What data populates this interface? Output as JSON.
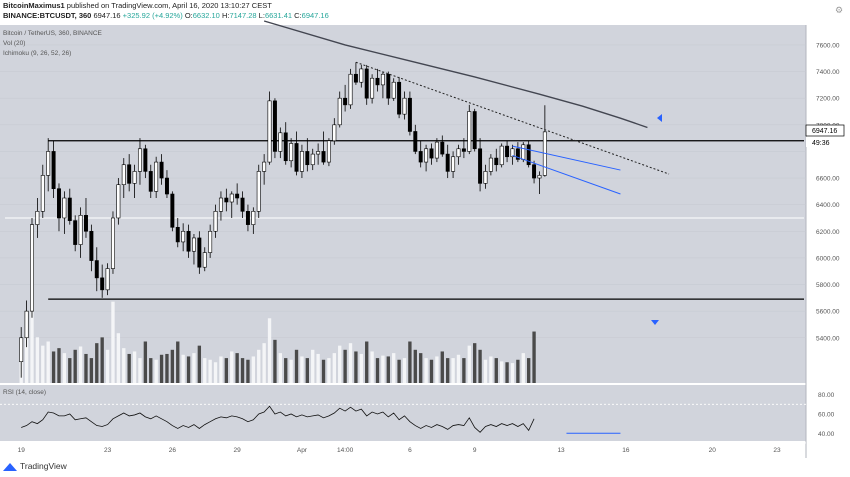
{
  "header": {
    "author": "BitcoinMaximus1",
    "published": "published on TradingView.com, April 16, 2020 13:10:27 CEST",
    "symbol": "BINANCE:BTCUSDT, 360",
    "last": "6947.16",
    "change": "+325.92 (+4.92%)",
    "o_label": "O:",
    "o": "6632.10",
    "h_label": "H:",
    "h": "7147.28",
    "l_label": "L:",
    "l": "6631.41",
    "c_label": "C:",
    "c": "6947.16"
  },
  "legend": {
    "title": "Bitcoin / TetherUS, 360, BINANCE",
    "vol": "Vol (20)",
    "ichimoku": "Ichimoku (9, 26, 52, 26)",
    "rsi": "RSI (14, close)"
  },
  "price_tag": {
    "value": "6947.16",
    "timer": "49:36"
  },
  "footer": {
    "brand": "TradingView"
  },
  "colors": {
    "background": "#d1d4dc",
    "bull": "#ffffff",
    "bear": "#000000",
    "wedge": "#2962ff",
    "ma": "#434651"
  },
  "chart_data": {
    "type": "candlestick",
    "price_axis": {
      "ticks": [
        5400,
        5600,
        5800,
        6000,
        6200,
        6400,
        6600,
        6800,
        7000,
        7200,
        7400,
        7600
      ],
      "labels": [
        "5400.00",
        "5600.00",
        "5800.00",
        "6000.00",
        "6200.00",
        "6400.00",
        "6600.00",
        "6800.00",
        "7000.00",
        "7200.00",
        "7400.00",
        "7600.00"
      ],
      "ylim": [
        5060,
        7750
      ]
    },
    "time_axis": {
      "labels": [
        "19",
        "23",
        "26",
        "29",
        "Apr",
        "14:00",
        "6",
        "9",
        "13",
        "16",
        "20",
        "23"
      ],
      "positions": [
        0,
        16,
        28,
        40,
        52,
        60,
        72,
        84,
        100,
        112,
        128,
        140
      ],
      "xlim": [
        -3,
        145
      ]
    },
    "candles": [
      [
        5220,
        5480,
        5100,
        5400
      ],
      [
        5400,
        5680,
        5330,
        5600
      ],
      [
        5600,
        6300,
        5550,
        6250
      ],
      [
        6250,
        6450,
        6150,
        6350
      ],
      [
        6350,
        6700,
        6300,
        6620
      ],
      [
        6620,
        6900,
        6500,
        6800
      ],
      [
        6800,
        6880,
        6450,
        6520
      ],
      [
        6520,
        6560,
        6200,
        6300
      ],
      [
        6300,
        6500,
        6180,
        6450
      ],
      [
        6450,
        6520,
        6250,
        6280
      ],
      [
        6280,
        6320,
        6050,
        6100
      ],
      [
        6100,
        6380,
        6000,
        6320
      ],
      [
        6320,
        6450,
        6150,
        6200
      ],
      [
        6200,
        6250,
        5900,
        5980
      ],
      [
        5980,
        6080,
        5750,
        5850
      ],
      [
        5850,
        5950,
        5700,
        5760
      ],
      [
        5760,
        5960,
        5720,
        5920
      ],
      [
        5920,
        6350,
        5880,
        6300
      ],
      [
        6300,
        6600,
        6250,
        6550
      ],
      [
        6550,
        6750,
        6450,
        6700
      ],
      [
        6700,
        6780,
        6500,
        6560
      ],
      [
        6560,
        6700,
        6450,
        6650
      ],
      [
        6650,
        6900,
        6550,
        6820
      ],
      [
        6820,
        6850,
        6600,
        6650
      ],
      [
        6650,
        6700,
        6450,
        6500
      ],
      [
        6500,
        6760,
        6450,
        6720
      ],
      [
        6720,
        6780,
        6550,
        6600
      ],
      [
        6600,
        6660,
        6450,
        6480
      ],
      [
        6480,
        6500,
        6200,
        6230
      ],
      [
        6230,
        6300,
        6080,
        6120
      ],
      [
        6120,
        6260,
        6050,
        6200
      ],
      [
        6200,
        6250,
        6000,
        6050
      ],
      [
        6050,
        6180,
        5950,
        6150
      ],
      [
        6150,
        6200,
        5880,
        5930
      ],
      [
        5930,
        6080,
        5900,
        6040
      ],
      [
        6040,
        6250,
        6000,
        6200
      ],
      [
        6200,
        6400,
        6150,
        6350
      ],
      [
        6350,
        6500,
        6280,
        6450
      ],
      [
        6450,
        6520,
        6350,
        6420
      ],
      [
        6420,
        6500,
        6300,
        6480
      ],
      [
        6480,
        6560,
        6400,
        6450
      ],
      [
        6450,
        6500,
        6300,
        6350
      ],
      [
        6350,
        6400,
        6200,
        6250
      ],
      [
        6250,
        6380,
        6180,
        6350
      ],
      [
        6350,
        6700,
        6300,
        6650
      ],
      [
        6650,
        6780,
        6550,
        6720
      ],
      [
        6720,
        7250,
        6700,
        7180
      ],
      [
        7180,
        7200,
        6750,
        6800
      ],
      [
        6800,
        6980,
        6750,
        6940
      ],
      [
        6940,
        7020,
        6700,
        6730
      ],
      [
        6730,
        6900,
        6680,
        6860
      ],
      [
        6860,
        6950,
        6620,
        6650
      ],
      [
        6650,
        6850,
        6600,
        6800
      ],
      [
        6800,
        6900,
        6650,
        6700
      ],
      [
        6700,
        6820,
        6660,
        6780
      ],
      [
        6780,
        6860,
        6700,
        6800
      ],
      [
        6800,
        6950,
        6700,
        6720
      ],
      [
        6720,
        6900,
        6690,
        6880
      ],
      [
        6880,
        7050,
        6850,
        7000
      ],
      [
        7000,
        7250,
        6980,
        7200
      ],
      [
        7200,
        7300,
        7100,
        7150
      ],
      [
        7150,
        7420,
        7120,
        7380
      ],
      [
        7380,
        7470,
        7300,
        7320
      ],
      [
        7320,
        7450,
        7280,
        7420
      ],
      [
        7420,
        7450,
        7150,
        7200
      ],
      [
        7200,
        7380,
        7160,
        7350
      ],
      [
        7350,
        7420,
        7250,
        7300
      ],
      [
        7300,
        7400,
        7200,
        7380
      ],
      [
        7380,
        7400,
        7150,
        7200
      ],
      [
        7200,
        7350,
        7180,
        7320
      ],
      [
        7320,
        7360,
        7050,
        7080
      ],
      [
        7080,
        7250,
        7040,
        7200
      ],
      [
        7200,
        7250,
        6920,
        6950
      ],
      [
        6950,
        7000,
        6780,
        6800
      ],
      [
        6800,
        6880,
        6680,
        6720
      ],
      [
        6720,
        6850,
        6650,
        6820
      ],
      [
        6820,
        6860,
        6700,
        6750
      ],
      [
        6750,
        6900,
        6720,
        6870
      ],
      [
        6870,
        6920,
        6760,
        6780
      ],
      [
        6780,
        6850,
        6600,
        6650
      ],
      [
        6650,
        6800,
        6600,
        6760
      ],
      [
        6760,
        6850,
        6700,
        6820
      ],
      [
        6820,
        6900,
        6750,
        6800
      ],
      [
        6800,
        7150,
        6780,
        7100
      ],
      [
        7100,
        7120,
        6800,
        6820
      ],
      [
        6820,
        6900,
        6500,
        6560
      ],
      [
        6560,
        6700,
        6520,
        6650
      ],
      [
        6650,
        6780,
        6620,
        6750
      ],
      [
        6750,
        6820,
        6650,
        6700
      ],
      [
        6700,
        6860,
        6680,
        6840
      ],
      [
        6840,
        6880,
        6720,
        6760
      ],
      [
        6760,
        6850,
        6700,
        6820
      ],
      [
        6820,
        6870,
        6720,
        6740
      ],
      [
        6740,
        6870,
        6720,
        6850
      ],
      [
        6850,
        6880,
        6680,
        6700
      ],
      [
        6700,
        6730,
        6560,
        6600
      ],
      [
        6600,
        6650,
        6480,
        6620
      ],
      [
        6620,
        7147,
        6610,
        6947
      ]
    ],
    "volume": [
      0.52,
      0.6,
      0.88,
      0.55,
      0.45,
      0.5,
      0.38,
      0.42,
      0.36,
      0.3,
      0.4,
      0.44,
      0.35,
      0.3,
      0.48,
      0.55,
      0.4,
      0.98,
      0.6,
      0.42,
      0.35,
      0.38,
      0.3,
      0.5,
      0.3,
      0.28,
      0.34,
      0.35,
      0.4,
      0.5,
      0.34,
      0.32,
      0.36,
      0.45,
      0.3,
      0.28,
      0.25,
      0.32,
      0.3,
      0.38,
      0.36,
      0.3,
      0.28,
      0.32,
      0.4,
      0.48,
      0.78,
      0.52,
      0.36,
      0.3,
      0.28,
      0.4,
      0.32,
      0.3,
      0.4,
      0.35,
      0.28,
      0.3,
      0.36,
      0.45,
      0.4,
      0.48,
      0.38,
      0.35,
      0.5,
      0.38,
      0.3,
      0.33,
      0.32,
      0.36,
      0.28,
      0.3,
      0.5,
      0.4,
      0.36,
      0.3,
      0.28,
      0.32,
      0.38,
      0.3,
      0.3,
      0.34,
      0.3,
      0.45,
      0.48,
      0.4,
      0.28,
      0.32,
      0.3,
      0.26,
      0.25,
      0.24,
      0.28,
      0.36,
      0.3,
      0.62
    ],
    "horizontal_levels": [
      6880,
      6300,
      5690
    ],
    "rsi": {
      "ticks": [
        40,
        60,
        80
      ],
      "labels": [
        "40.00",
        "60.00",
        "80.00"
      ],
      "ylim": [
        32,
        90
      ],
      "band": [
        30,
        70
      ],
      "values": [
        46,
        48,
        52,
        50,
        54,
        62,
        61,
        58,
        58,
        60,
        54,
        55,
        56,
        52,
        48,
        47,
        49,
        55,
        58,
        61,
        58,
        59,
        61,
        57,
        55,
        58,
        55,
        52,
        48,
        45,
        48,
        46,
        49,
        45,
        49,
        52,
        55,
        57,
        56,
        58,
        57,
        55,
        52,
        54,
        60,
        62,
        68,
        60,
        62,
        58,
        60,
        57,
        59,
        57,
        58,
        59,
        56,
        58,
        61,
        66,
        63,
        67,
        63,
        65,
        58,
        62,
        60,
        62,
        57,
        61,
        54,
        58,
        52,
        48,
        45,
        48,
        46,
        49,
        47,
        44,
        48,
        49,
        48,
        56,
        46,
        41,
        47,
        49,
        47,
        50,
        48,
        50,
        47,
        50,
        43,
        55
      ]
    },
    "moving_average": [
      [
        45,
        7780
      ],
      [
        60,
        7600
      ],
      [
        72,
        7480
      ],
      [
        84,
        7360
      ],
      [
        96,
        7230
      ],
      [
        104,
        7140
      ],
      [
        111,
        7050
      ],
      [
        116,
        6980
      ]
    ],
    "resistance_dotted": [
      [
        62,
        7470
      ],
      [
        120,
        6630
      ]
    ],
    "wedge_upper": [
      [
        91,
        6840
      ],
      [
        111,
        6660
      ]
    ],
    "wedge_lower": [
      [
        91,
        6770
      ],
      [
        111,
        6480
      ]
    ],
    "rsi_divergence": [
      [
        101,
        40
      ],
      [
        111,
        40
      ]
    ]
  }
}
